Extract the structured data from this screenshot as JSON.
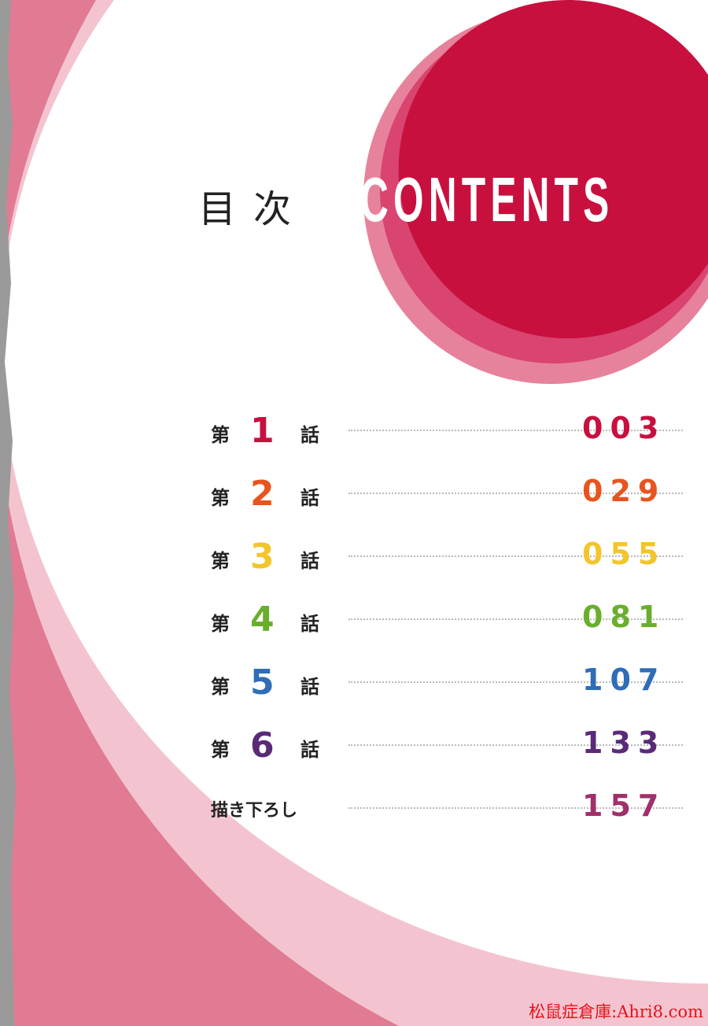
{
  "header": {
    "title_jp": "目次",
    "title_en": "CONTENTS"
  },
  "colors": {
    "background_pink": "#e07b93",
    "circle_dark": "#c8103f",
    "circle_light": "#e2587b"
  },
  "toc": [
    {
      "prefix": "第",
      "number": "1",
      "suffix": "話",
      "page": "003",
      "color": "#c8103f"
    },
    {
      "prefix": "第",
      "number": "2",
      "suffix": "話",
      "page": "029",
      "color": "#e8541e"
    },
    {
      "prefix": "第",
      "number": "3",
      "suffix": "話",
      "page": "055",
      "color": "#f3c52c"
    },
    {
      "prefix": "第",
      "number": "4",
      "suffix": "話",
      "page": "081",
      "color": "#6aae2e"
    },
    {
      "prefix": "第",
      "number": "5",
      "suffix": "話",
      "page": "107",
      "color": "#2f6db6"
    },
    {
      "prefix": "第",
      "number": "6",
      "suffix": "話",
      "page": "133",
      "color": "#5a2a78"
    }
  ],
  "bonus": {
    "label": "描き下ろし",
    "page": "157",
    "color": "#a0306a"
  },
  "watermark": "松鼠症倉庫:Ahri8.com"
}
